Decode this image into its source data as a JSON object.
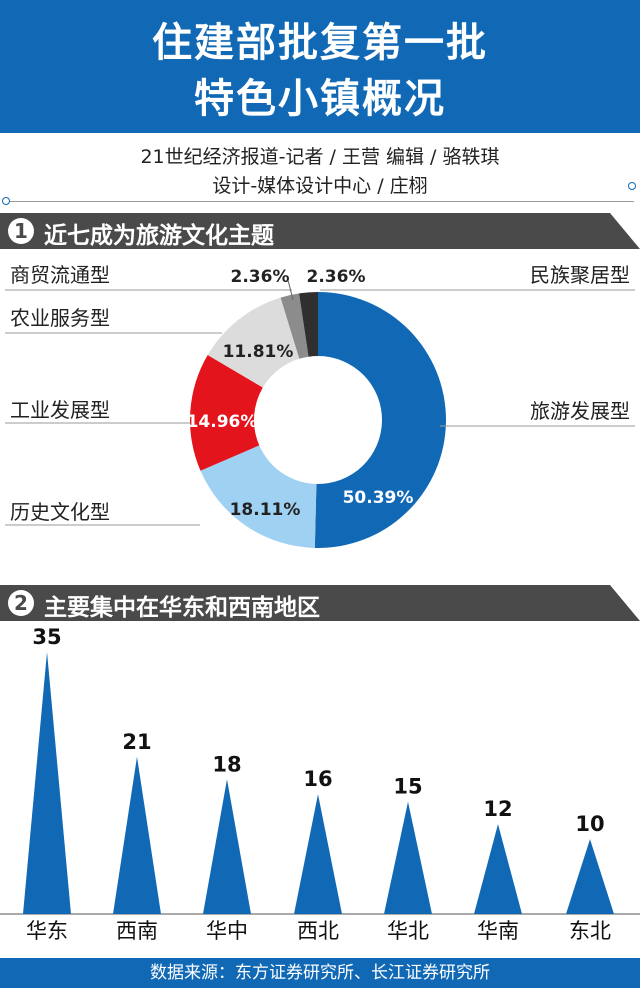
{
  "header": {
    "title_line1": "住建部批复第一批",
    "title_line2": "特色小镇概况"
  },
  "credits": {
    "line1": "21世纪经济报道-记者 / 王营    编辑 / 骆轶琪",
    "line2": "设计-媒体设计中心 / 庄栩"
  },
  "sections": [
    {
      "number": "1",
      "title": "近七成为旅游文化主题"
    },
    {
      "number": "2",
      "title": "主要集中在华东和西南地区"
    }
  ],
  "footer": {
    "source": "数据来源：东方证券研究所、长江证券研究所"
  },
  "colors": {
    "brand_blue": "#1169b6",
    "section_gray": "#4a4a4a"
  },
  "chart_data": [
    {
      "type": "pie",
      "title": "近七成为旅游文化主题",
      "donut": true,
      "slices": [
        {
          "label": "旅游发展型",
          "value": 50.39,
          "value_label": "50.39%",
          "color": "#1169b6"
        },
        {
          "label": "历史文化型",
          "value": 18.11,
          "value_label": "18.11%",
          "color": "#9fd1f2"
        },
        {
          "label": "工业发展型",
          "value": 14.96,
          "value_label": "14.96%",
          "color": "#e3141c"
        },
        {
          "label": "农业服务型",
          "value": 11.81,
          "value_label": "11.81%",
          "color": "#dcdcdc"
        },
        {
          "label": "商贸流通型",
          "value": 2.36,
          "value_label": "2.36%",
          "color": "#8c8c8c"
        },
        {
          "label": "民族聚居型",
          "value": 2.36,
          "value_label": "2.36%",
          "color": "#2f2f2f"
        }
      ]
    },
    {
      "type": "bar",
      "title": "主要集中在华东和西南地区",
      "categories": [
        "华东",
        "西南",
        "华中",
        "西北",
        "华北",
        "华南",
        "东北"
      ],
      "values": [
        35,
        21,
        18,
        16,
        15,
        12,
        10
      ],
      "value_labels": [
        "35",
        "21",
        "18",
        "16",
        "15",
        "12",
        "10"
      ],
      "bar_shape": "triangle",
      "color": "#1169b6"
    }
  ]
}
